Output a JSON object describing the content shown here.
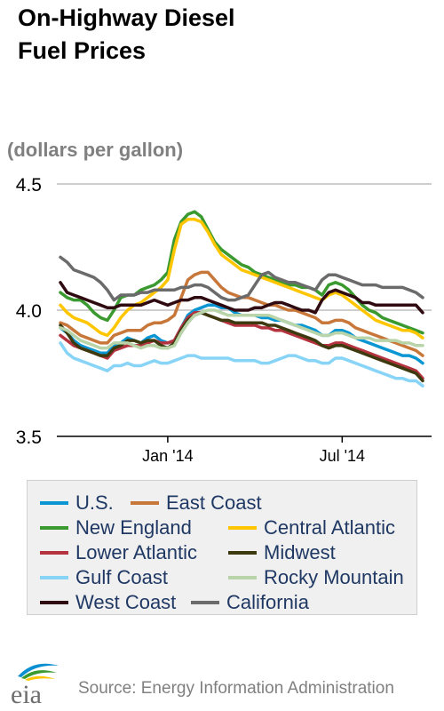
{
  "title_lines": [
    "On-Highway Diesel",
    "Fuel Prices"
  ],
  "unit_label": "(dollars per gallon)",
  "source": "Source: Energy Information Administration",
  "logo_text": "eia",
  "chart_data": {
    "type": "line",
    "title": "On-Highway Diesel Fuel Prices",
    "ylabel": "(dollars per gallon)",
    "xlabel": "",
    "ylim": [
      3.5,
      4.5
    ],
    "yticks": [
      3.5,
      4.0,
      4.5
    ],
    "xticks": [
      {
        "label": "Jan '14",
        "index": 16
      },
      {
        "label": "Jul '14",
        "index": 42
      }
    ],
    "grid": "horizontal",
    "legend": "bottom",
    "x_start": "2013-10-07",
    "x_interval": "weekly",
    "series": [
      {
        "name": "U.S.",
        "color": "#0a96d2",
        "values": [
          3.93,
          3.91,
          3.88,
          3.86,
          3.85,
          3.84,
          3.83,
          3.83,
          3.86,
          3.87,
          3.89,
          3.88,
          3.87,
          3.89,
          3.9,
          3.88,
          3.87,
          3.88,
          3.93,
          3.98,
          4.0,
          4.01,
          4.02,
          4.02,
          4.01,
          4.01,
          3.99,
          3.98,
          3.98,
          3.98,
          3.97,
          3.97,
          3.96,
          3.96,
          3.95,
          3.94,
          3.94,
          3.93,
          3.92,
          3.9,
          3.9,
          3.92,
          3.92,
          3.91,
          3.89,
          3.88,
          3.87,
          3.86,
          3.85,
          3.84,
          3.83,
          3.82,
          3.82,
          3.81,
          3.79
        ]
      },
      {
        "name": "East Coast",
        "color": "#c8773a",
        "values": [
          3.95,
          3.94,
          3.92,
          3.9,
          3.89,
          3.88,
          3.87,
          3.87,
          3.9,
          3.91,
          3.92,
          3.92,
          3.92,
          3.94,
          3.95,
          3.95,
          3.96,
          3.98,
          4.05,
          4.12,
          4.14,
          4.15,
          4.15,
          4.12,
          4.09,
          4.07,
          4.06,
          4.05,
          4.05,
          4.04,
          4.03,
          4.02,
          4.02,
          4.01,
          4.0,
          4.0,
          3.99,
          3.98,
          3.97,
          3.95,
          3.95,
          3.96,
          3.96,
          3.95,
          3.93,
          3.92,
          3.91,
          3.9,
          3.89,
          3.88,
          3.87,
          3.86,
          3.85,
          3.84,
          3.82
        ]
      },
      {
        "name": "New England",
        "color": "#3a9a2f",
        "values": [
          4.07,
          4.05,
          4.04,
          4.04,
          4.02,
          3.99,
          3.97,
          3.96,
          4.0,
          4.05,
          4.06,
          4.06,
          4.08,
          4.09,
          4.1,
          4.12,
          4.15,
          4.28,
          4.35,
          4.38,
          4.39,
          4.37,
          4.32,
          4.27,
          4.24,
          4.22,
          4.2,
          4.18,
          4.17,
          4.15,
          4.14,
          4.13,
          4.12,
          4.11,
          4.1,
          4.1,
          4.09,
          4.09,
          4.08,
          4.06,
          4.1,
          4.11,
          4.1,
          4.08,
          4.05,
          4.02,
          4.0,
          3.99,
          3.97,
          3.96,
          3.95,
          3.94,
          3.93,
          3.92,
          3.91
        ]
      },
      {
        "name": "Central Atlantic",
        "color": "#ffc600",
        "values": [
          4.02,
          3.99,
          3.97,
          3.96,
          3.95,
          3.93,
          3.91,
          3.9,
          3.93,
          3.97,
          4.0,
          4.02,
          4.03,
          4.05,
          4.07,
          4.09,
          4.12,
          4.24,
          4.34,
          4.36,
          4.36,
          4.35,
          4.31,
          4.26,
          4.22,
          4.2,
          4.18,
          4.16,
          4.15,
          4.14,
          4.13,
          4.12,
          4.11,
          4.1,
          4.09,
          4.08,
          4.07,
          4.06,
          4.05,
          4.04,
          4.06,
          4.07,
          4.06,
          4.04,
          4.02,
          4.0,
          3.98,
          3.96,
          3.95,
          3.94,
          3.93,
          3.92,
          3.92,
          3.91,
          3.89
        ]
      },
      {
        "name": "Lower Atlantic",
        "color": "#b5333f",
        "values": [
          3.9,
          3.88,
          3.86,
          3.85,
          3.84,
          3.83,
          3.82,
          3.81,
          3.84,
          3.85,
          3.86,
          3.86,
          3.86,
          3.87,
          3.88,
          3.87,
          3.87,
          3.88,
          3.93,
          3.97,
          3.99,
          3.99,
          3.98,
          3.97,
          3.96,
          3.95,
          3.94,
          3.94,
          3.94,
          3.94,
          3.93,
          3.93,
          3.92,
          3.92,
          3.91,
          3.9,
          3.89,
          3.88,
          3.87,
          3.86,
          3.86,
          3.87,
          3.87,
          3.86,
          3.85,
          3.84,
          3.83,
          3.82,
          3.81,
          3.8,
          3.79,
          3.78,
          3.77,
          3.76,
          3.73
        ]
      },
      {
        "name": "Midwest",
        "color": "#3d3a10",
        "values": [
          3.94,
          3.91,
          3.87,
          3.85,
          3.84,
          3.83,
          3.82,
          3.82,
          3.85,
          3.86,
          3.88,
          3.88,
          3.87,
          3.88,
          3.88,
          3.86,
          3.85,
          3.87,
          3.92,
          3.96,
          3.98,
          3.99,
          3.98,
          3.97,
          3.96,
          3.96,
          3.95,
          3.95,
          3.95,
          3.95,
          3.95,
          3.94,
          3.94,
          3.93,
          3.92,
          3.91,
          3.9,
          3.89,
          3.88,
          3.86,
          3.85,
          3.86,
          3.86,
          3.85,
          3.84,
          3.83,
          3.82,
          3.81,
          3.8,
          3.79,
          3.78,
          3.77,
          3.76,
          3.75,
          3.72
        ]
      },
      {
        "name": "Gulf Coast",
        "color": "#87d4f7",
        "values": [
          3.87,
          3.83,
          3.81,
          3.8,
          3.79,
          3.78,
          3.77,
          3.76,
          3.78,
          3.78,
          3.79,
          3.78,
          3.78,
          3.79,
          3.8,
          3.79,
          3.79,
          3.8,
          3.81,
          3.82,
          3.82,
          3.81,
          3.81,
          3.81,
          3.81,
          3.81,
          3.8,
          3.8,
          3.8,
          3.8,
          3.79,
          3.79,
          3.8,
          3.81,
          3.82,
          3.82,
          3.81,
          3.8,
          3.8,
          3.79,
          3.79,
          3.81,
          3.81,
          3.8,
          3.79,
          3.78,
          3.77,
          3.76,
          3.75,
          3.74,
          3.73,
          3.73,
          3.72,
          3.72,
          3.7
        ]
      },
      {
        "name": "Rocky Mountain",
        "color": "#b8d4a8",
        "values": [
          3.93,
          3.92,
          3.9,
          3.88,
          3.87,
          3.86,
          3.85,
          3.85,
          3.87,
          3.87,
          3.87,
          3.86,
          3.85,
          3.86,
          3.86,
          3.85,
          3.85,
          3.86,
          3.91,
          3.95,
          3.98,
          3.99,
          4.0,
          4.0,
          3.99,
          3.98,
          3.98,
          3.98,
          3.98,
          3.98,
          3.98,
          3.98,
          3.97,
          3.96,
          3.95,
          3.94,
          3.93,
          3.92,
          3.91,
          3.9,
          3.9,
          3.91,
          3.91,
          3.9,
          3.89,
          3.89,
          3.89,
          3.88,
          3.88,
          3.88,
          3.88,
          3.87,
          3.87,
          3.86,
          3.86
        ]
      },
      {
        "name": "West Coast",
        "color": "#2f0a10",
        "values": [
          4.11,
          4.07,
          4.06,
          4.05,
          4.04,
          4.03,
          4.02,
          4.01,
          4.01,
          4.02,
          4.02,
          4.02,
          4.02,
          4.03,
          4.04,
          4.03,
          4.02,
          4.03,
          4.04,
          4.04,
          4.05,
          4.05,
          4.04,
          4.03,
          4.02,
          4.01,
          4.0,
          4.0,
          4.0,
          4.01,
          4.01,
          4.02,
          4.03,
          4.03,
          4.02,
          4.01,
          4.0,
          4.0,
          3.99,
          4.04,
          4.07,
          4.08,
          4.07,
          4.06,
          4.05,
          4.03,
          4.03,
          4.02,
          4.02,
          4.02,
          4.02,
          4.02,
          4.02,
          4.02,
          3.99
        ]
      },
      {
        "name": "California",
        "color": "#6b6b6b",
        "values": [
          4.21,
          4.19,
          4.16,
          4.15,
          4.14,
          4.13,
          4.11,
          4.08,
          4.04,
          4.06,
          4.06,
          4.06,
          4.07,
          4.07,
          4.08,
          4.08,
          4.08,
          4.08,
          4.09,
          4.09,
          4.1,
          4.1,
          4.09,
          4.07,
          4.05,
          4.04,
          4.04,
          4.05,
          4.06,
          4.1,
          4.14,
          4.15,
          4.13,
          4.12,
          4.11,
          4.11,
          4.1,
          4.09,
          4.08,
          4.12,
          4.14,
          4.14,
          4.13,
          4.12,
          4.11,
          4.1,
          4.1,
          4.1,
          4.09,
          4.09,
          4.09,
          4.09,
          4.08,
          4.07,
          4.05
        ]
      }
    ]
  }
}
